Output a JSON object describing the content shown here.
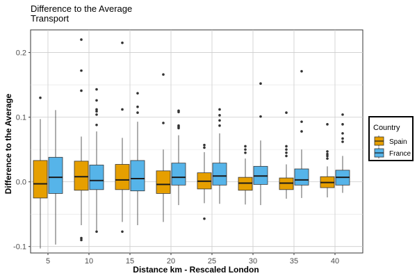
{
  "chart_data": {
    "type": "boxplot",
    "title": "Difference to the Average",
    "subtitle": "Transport",
    "xlabel": "Distance km - Rescaled London",
    "ylabel": "Difference to the Average",
    "categories": [
      "5",
      "10",
      "15",
      "20",
      "25",
      "30",
      "35",
      "40"
    ],
    "ylim": [
      -0.11,
      0.235
    ],
    "yticks": [
      -0.1,
      0.0,
      0.1,
      0.2
    ],
    "ytick_labels": [
      "-0.1",
      "0.0",
      "0.1",
      "0.2"
    ],
    "grid": true,
    "legend": {
      "title": "Country",
      "placement": "right"
    },
    "series": [
      {
        "name": "Spain",
        "color": "#E69F00",
        "boxes": [
          {
            "whisker_low": -0.103,
            "q1": -0.025,
            "median": -0.003,
            "q3": 0.033,
            "whisker_high": 0.097,
            "outliers": [
              0.13
            ]
          },
          {
            "whisker_low": -0.067,
            "q1": -0.013,
            "median": 0.008,
            "q3": 0.032,
            "whisker_high": 0.07,
            "outliers": [
              0.22,
              0.172,
              0.141,
              -0.087,
              -0.09
            ]
          },
          {
            "whisker_low": -0.062,
            "q1": -0.012,
            "median": 0.003,
            "q3": 0.027,
            "whisker_high": 0.068,
            "outliers": [
              0.215,
              0.112,
              -0.077
            ]
          },
          {
            "whisker_low": -0.062,
            "q1": -0.018,
            "median": -0.004,
            "q3": 0.017,
            "whisker_high": 0.05,
            "outliers": [
              0.166,
              0.091
            ]
          },
          {
            "whisker_low": -0.033,
            "q1": -0.011,
            "median": 0.001,
            "q3": 0.014,
            "whisker_high": 0.046,
            "outliers": [
              0.057,
              0.053,
              -0.057
            ]
          },
          {
            "whisker_low": -0.035,
            "q1": -0.013,
            "median": -0.002,
            "q3": 0.007,
            "whisker_high": 0.036,
            "outliers": [
              0.055,
              0.05,
              0.045
            ]
          },
          {
            "whisker_low": -0.026,
            "q1": -0.012,
            "median": -0.002,
            "q3": 0.006,
            "whisker_high": 0.027,
            "outliers": [
              0.107,
              0.055,
              0.05,
              0.045,
              0.04
            ]
          },
          {
            "whisker_low": -0.024,
            "q1": -0.009,
            "median": -0.001,
            "q3": 0.008,
            "whisker_high": 0.024,
            "outliers": [
              0.089,
              0.047,
              0.043,
              0.04,
              0.036
            ]
          }
        ]
      },
      {
        "name": "France",
        "color": "#56B4E9",
        "boxes": [
          {
            "whisker_low": -0.097,
            "q1": -0.018,
            "median": 0.007,
            "q3": 0.038,
            "whisker_high": 0.111,
            "outliers": []
          },
          {
            "whisker_low": -0.075,
            "q1": -0.012,
            "median": 0.002,
            "q3": 0.026,
            "whisker_high": 0.078,
            "outliers": [
              0.143,
              0.126,
              0.112,
              0.109,
              0.104,
              0.088,
              -0.077
            ]
          },
          {
            "whisker_low": -0.067,
            "q1": -0.014,
            "median": 0.005,
            "q3": 0.033,
            "whisker_high": 0.093,
            "outliers": [
              0.137,
              0.116,
              0.107
            ]
          },
          {
            "whisker_low": -0.036,
            "q1": -0.005,
            "median": 0.007,
            "q3": 0.029,
            "whisker_high": 0.072,
            "outliers": [
              0.11,
              0.108,
              0.087,
              0.085,
              0.083
            ]
          },
          {
            "whisker_low": -0.034,
            "q1": -0.005,
            "median": 0.009,
            "q3": 0.029,
            "whisker_high": 0.075,
            "outliers": [
              0.112,
              0.103,
              0.095,
              0.087
            ]
          },
          {
            "whisker_low": -0.036,
            "q1": -0.004,
            "median": 0.009,
            "q3": 0.024,
            "whisker_high": 0.064,
            "outliers": [
              0.152,
              0.101
            ]
          },
          {
            "whisker_low": -0.025,
            "q1": -0.005,
            "median": 0.003,
            "q3": 0.02,
            "whisker_high": 0.05,
            "outliers": [
              0.171,
              0.093,
              0.078
            ]
          },
          {
            "whisker_low": -0.017,
            "q1": -0.005,
            "median": 0.007,
            "q3": 0.018,
            "whisker_high": 0.04,
            "outliers": [
              0.104,
              0.089,
              0.075,
              0.067,
              0.062
            ]
          }
        ]
      }
    ]
  }
}
